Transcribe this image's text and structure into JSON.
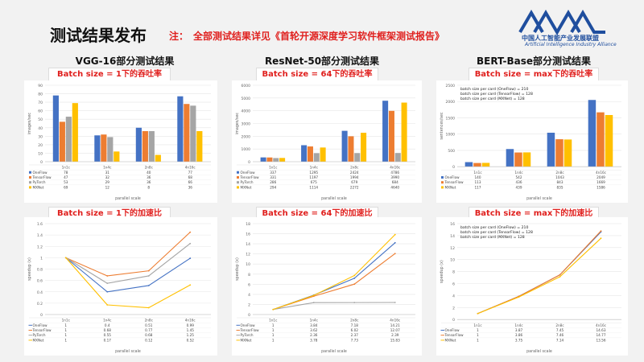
{
  "header": {
    "title": "测试结果发布",
    "note_label": "注：",
    "note_text": "全部测试结果详见《首轮开源深度学习软件框架测试报告》",
    "logo_cn": "中国人工智能产业发展联盟",
    "logo_en": "Artificial Intelligence Industry Alliance"
  },
  "columns": [
    {
      "title": "VGG-16部分测试结果",
      "throughput_label": "Batch size = 1下的吞吐率",
      "speedup_label": "Batch size = 1下的加速比"
    },
    {
      "title": "ResNet-50部分测试结果",
      "throughput_label": "Batch size = 64下的吞吐率",
      "speedup_label": "Batch size = 64下的加速比"
    },
    {
      "title": "BERT-Base部分测试结果",
      "throughput_label": "Batch size = max下的吞吐率",
      "speedup_label": "Batch size = max下的加速比"
    }
  ],
  "colors": {
    "OneFlow": "#4472c4",
    "TensorFlow": "#ed7d31",
    "PyTorch": "#a5a5a5",
    "MXNet": "#ffc000",
    "red": "#e0201e"
  },
  "chart_data": [
    {
      "type": "bar",
      "categories": [
        "1n1c",
        "1n4c",
        "2n8c",
        "4n16c"
      ],
      "ylabel": "images/sec",
      "xlabel": "parallel scale",
      "ylim": [
        0,
        90
      ],
      "yticks": [
        0,
        10,
        20,
        30,
        40,
        50,
        60,
        70,
        80,
        90
      ],
      "series": [
        {
          "name": "OneFlow",
          "values": [
            78,
            31,
            40,
            77
          ]
        },
        {
          "name": "TensorFlow",
          "values": [
            47,
            32,
            36,
            68
          ]
        },
        {
          "name": "PyTorch",
          "values": [
            53,
            29,
            36,
            66
          ]
        },
        {
          "name": "MXNet",
          "values": [
            69,
            12,
            8,
            36
          ]
        }
      ]
    },
    {
      "type": "bar",
      "categories": [
        "1n1c",
        "1n4c",
        "2n8c",
        "4n16c"
      ],
      "ylabel": "images/sec",
      "xlabel": "parallel scale",
      "ylim": [
        0,
        6000
      ],
      "yticks": [
        0,
        1000,
        2000,
        3000,
        4000,
        5000,
        6000
      ],
      "series": [
        {
          "name": "OneFlow",
          "values": [
            337,
            1295,
            2424,
            4786
          ]
        },
        {
          "name": "TensorFlow",
          "values": [
            331,
            1197,
            1994,
            3990
          ]
        },
        {
          "name": "PyTorch",
          "values": [
            286,
            675,
            679,
            684
          ]
        },
        {
          "name": "MXNet",
          "values": [
            294,
            1114,
            2272,
            4640
          ]
        }
      ]
    },
    {
      "type": "bar",
      "categories": [
        "1n1c",
        "1n4c",
        "2n8c",
        "4n16c"
      ],
      "ylabel": "sentences/sec",
      "xlabel": "parallel scale",
      "ylim": [
        0,
        2500
      ],
      "yticks": [
        0,
        500,
        1000,
        1500,
        2000,
        2500
      ],
      "annotations": [
        "batch size per card (OneFlow) = 210",
        "batch size per card (TensorFlow) = 128",
        "batch size per card (MXNet) = 128"
      ],
      "series": [
        {
          "name": "OneFlow",
          "values": [
            140,
            542,
            1043,
            2049
          ]
        },
        {
          "name": "TensorFlow",
          "values": [
            113,
            436,
            843,
            1669
          ]
        },
        {
          "name": "MXNet",
          "values": [
            117,
            439,
            835,
            1586
          ]
        }
      ]
    },
    {
      "type": "line",
      "categories": [
        "1n1c",
        "1n4c",
        "2n8c",
        "4n16c"
      ],
      "ylabel": "speedup (x)",
      "xlabel": "parallel scale",
      "ylim": [
        0,
        1.6
      ],
      "yticks": [
        0,
        0.2,
        0.4,
        0.6,
        0.8,
        1.0,
        1.2,
        1.4,
        1.6
      ],
      "series": [
        {
          "name": "OneFlow",
          "values": [
            1,
            0.4,
            0.51,
            0.99
          ]
        },
        {
          "name": "TensorFlow",
          "values": [
            1,
            0.68,
            0.77,
            1.45
          ]
        },
        {
          "name": "PyTorch",
          "values": [
            1,
            0.55,
            0.68,
            1.25
          ]
        },
        {
          "name": "MXNet",
          "values": [
            1,
            0.17,
            0.12,
            0.52
          ]
        }
      ]
    },
    {
      "type": "line",
      "categories": [
        "1n1c",
        "1n4c",
        "2n8c",
        "4n16c"
      ],
      "ylabel": "speedup (x)",
      "xlabel": "parallel scale",
      "ylim": [
        0,
        18
      ],
      "yticks": [
        0,
        2,
        4,
        6,
        8,
        10,
        12,
        14,
        16,
        18
      ],
      "series": [
        {
          "name": "OneFlow",
          "values": [
            1,
            3.84,
            7.18,
            14.21
          ]
        },
        {
          "name": "TensorFlow",
          "values": [
            1,
            3.62,
            6.02,
            12.07
          ]
        },
        {
          "name": "PyTorch",
          "values": [
            1,
            2.36,
            2.37,
            2.39
          ]
        },
        {
          "name": "MXNet",
          "values": [
            1,
            3.78,
            7.73,
            15.83
          ]
        }
      ]
    },
    {
      "type": "line",
      "categories": [
        "1n1c",
        "1n4c",
        "2n8c",
        "4n16c"
      ],
      "ylabel": "speedup (x)",
      "xlabel": "parallel scale",
      "ylim": [
        0,
        16
      ],
      "yticks": [
        0,
        2,
        4,
        6,
        8,
        10,
        12,
        14,
        16
      ],
      "annotations": [
        "batch size per card (OneFlow) = 210",
        "batch size per card (TensorFlow) = 128",
        "batch size per card (MXNet) = 128"
      ],
      "series": [
        {
          "name": "OneFlow",
          "values": [
            1,
            3.87,
            7.45,
            14.63
          ]
        },
        {
          "name": "TensorFlow",
          "values": [
            1,
            3.86,
            7.46,
            14.77
          ]
        },
        {
          "name": "MXNet",
          "values": [
            1,
            3.75,
            7.14,
            13.56
          ]
        }
      ]
    }
  ]
}
